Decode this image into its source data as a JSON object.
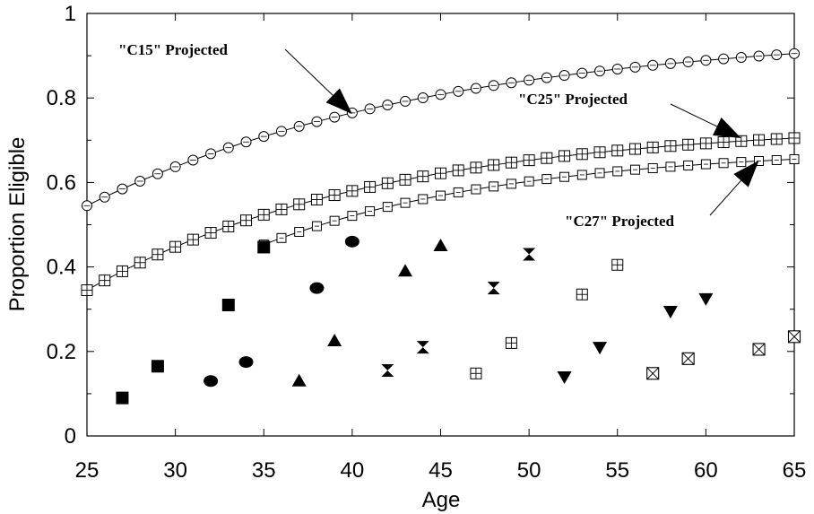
{
  "chart_data": {
    "type": "scatter",
    "xlabel": "Age",
    "ylabel": "Proportion Eligible",
    "xlim": [
      25,
      65
    ],
    "ylim": [
      0,
      1
    ],
    "xticks": [
      "25",
      "30",
      "35",
      "40",
      "45",
      "50",
      "55",
      "60",
      "65"
    ],
    "yticks": [
      "0",
      "0.2",
      "0.4",
      "0.6",
      "0.8",
      "1"
    ],
    "grid": false,
    "curves": [
      {
        "marker": "circle-open",
        "start": [
          25,
          0.545
        ],
        "end": [
          65,
          0.905
        ],
        "rate": 0.05
      },
      {
        "marker": "square-plus",
        "start": [
          25,
          0.345
        ],
        "end": [
          65,
          0.705
        ],
        "rate": 0.06
      },
      {
        "marker": "square-dot",
        "start": [
          35,
          0.453
        ],
        "end": [
          65,
          0.655
        ],
        "rate": 0.07
      }
    ],
    "series": [
      {
        "marker": "square-filled",
        "points": [
          [
            27,
            0.09
          ],
          [
            29,
            0.165
          ],
          [
            33,
            0.31
          ],
          [
            35,
            0.447
          ]
        ]
      },
      {
        "marker": "circle-filled",
        "points": [
          [
            32,
            0.13
          ],
          [
            34,
            0.175
          ],
          [
            38,
            0.35
          ],
          [
            40,
            0.46
          ]
        ]
      },
      {
        "marker": "triangle-up",
        "points": [
          [
            37,
            0.13
          ],
          [
            39,
            0.225
          ],
          [
            43,
            0.39
          ],
          [
            45,
            0.45
          ]
        ]
      },
      {
        "marker": "hourglass",
        "points": [
          [
            42,
            0.155
          ],
          [
            44,
            0.21
          ],
          [
            48,
            0.35
          ],
          [
            50,
            0.43
          ]
        ]
      },
      {
        "marker": "square-plus",
        "points": [
          [
            47,
            0.148
          ],
          [
            49,
            0.22
          ],
          [
            53,
            0.335
          ],
          [
            55,
            0.405
          ]
        ]
      },
      {
        "marker": "triangle-down",
        "points": [
          [
            52,
            0.14
          ],
          [
            54,
            0.21
          ],
          [
            58,
            0.295
          ],
          [
            60,
            0.325
          ]
        ]
      },
      {
        "marker": "square-cross",
        "points": [
          [
            57,
            0.148
          ],
          [
            59,
            0.183
          ],
          [
            63,
            0.205
          ],
          [
            65,
            0.235
          ]
        ]
      }
    ],
    "annotations": [
      {
        "text": "\"C15\" Projected",
        "target": [
          40,
          0.762
        ]
      },
      {
        "text": "\"C25\" Projected",
        "target": [
          62,
          0.705
        ]
      },
      {
        "text": "\"C27\" Projected",
        "target": [
          63,
          0.652
        ]
      }
    ]
  }
}
